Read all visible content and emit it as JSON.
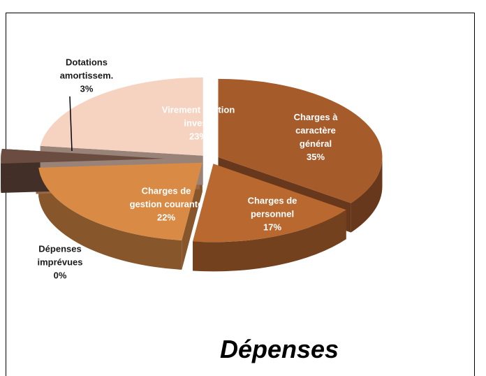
{
  "chart_data": {
    "type": "pie",
    "title": "Dépenses",
    "categories": [
      "Charges à caractère général",
      "Charges de personnel",
      "Charges de gestion courante",
      "Dépenses imprévues",
      "Dotations amortissem.",
      "Virement section invest."
    ],
    "values": [
      35,
      17,
      22,
      0,
      3,
      23
    ],
    "value_labels": [
      "35%",
      "17%",
      "22%",
      "0%",
      "3%",
      "23%"
    ],
    "colors": [
      "#a65b2b",
      "#b9692f",
      "#d98a45",
      "#f5a873",
      "#6b4c40",
      "#f6d3c1"
    ]
  }
}
